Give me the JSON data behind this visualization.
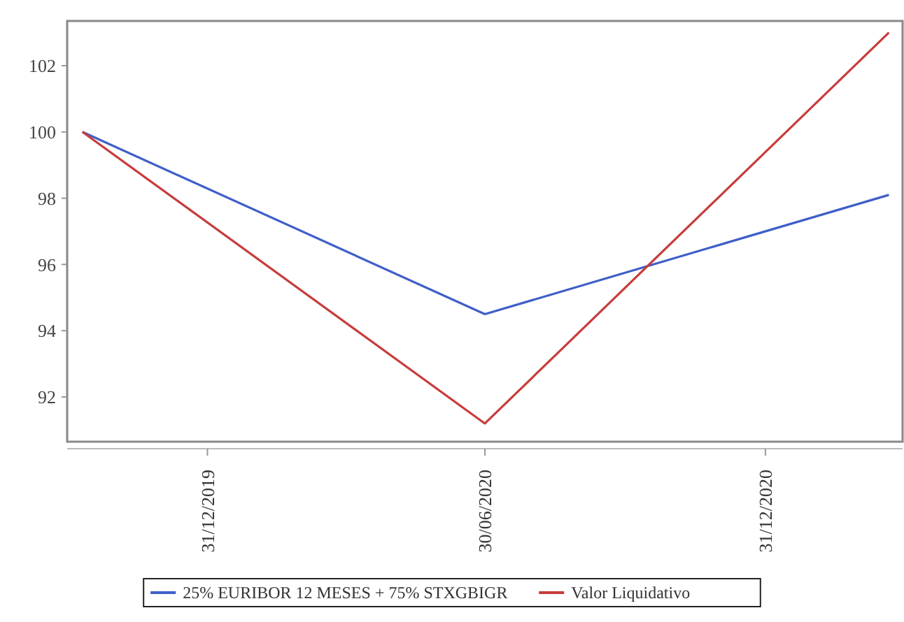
{
  "chart_data": {
    "type": "line",
    "x": [
      "2019-10-10",
      "2020-06-30",
      "2021-03-22"
    ],
    "series": [
      {
        "name": "25% EURIBOR 12 MESES + 75% STXGBIGR",
        "color": "#3f5fc8",
        "values": [
          100,
          94.5,
          98.1
        ]
      },
      {
        "name": "Valor Liquidativo",
        "color": "#c83c3c",
        "values": [
          100,
          91.2,
          103.0
        ]
      }
    ],
    "xlim": [
      "2019-09-30",
      "2021-03-31"
    ],
    "xticks": [
      {
        "value": "2019-12-31",
        "label": "31/12/2019"
      },
      {
        "value": "2020-06-30",
        "label": "30/06/2020"
      },
      {
        "value": "2020-12-31",
        "label": "31/12/2020"
      }
    ],
    "ylim": [
      90.65,
      103.35
    ],
    "yticks": [
      92,
      94,
      96,
      98,
      100,
      102
    ],
    "grid": false,
    "legend": "bottom",
    "marker": "none",
    "line_style": "solid"
  }
}
